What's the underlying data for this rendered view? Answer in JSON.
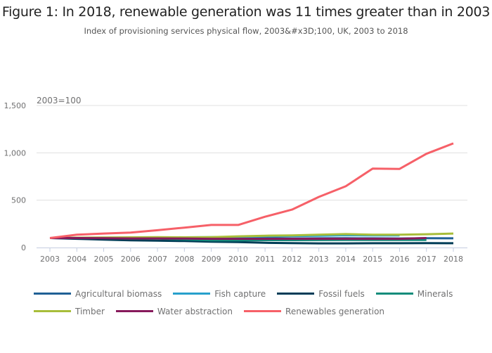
{
  "chart_data": {
    "type": "line",
    "title": "Figure 1: In 2018, renewable generation was 11 times greater than in 2003",
    "subtitle": "Index of provisioning services physical flow, 2003&#x3D;100, UK, 2003 to 2018",
    "unit_label": "2003=100",
    "xlabel": "",
    "ylabel": "",
    "ylim": [
      0,
      1500
    ],
    "yticks": [
      0,
      500,
      1000,
      1500
    ],
    "ytick_labels": [
      "0",
      "500",
      "1,000",
      "1,500"
    ],
    "grid": true,
    "legend_position": "bottom",
    "x": [
      "2003",
      "2004",
      "2005",
      "2006",
      "2007",
      "2008",
      "2009",
      "2010",
      "2011",
      "2012",
      "2013",
      "2014",
      "2015",
      "2016",
      "2017",
      "2018"
    ],
    "series": [
      {
        "name": "Agricultural biomass",
        "color": "#206095",
        "values": [
          100,
          98,
          97,
          96,
          97,
          96,
          97,
          96,
          97,
          96,
          97,
          98,
          97,
          96,
          98,
          97
        ]
      },
      {
        "name": "Fish capture",
        "color": "#27a0cc",
        "values": [
          100,
          104,
          102,
          103,
          106,
          108,
          110,
          112,
          118,
          120,
          125,
          130,
          128,
          128,
          null,
          null
        ]
      },
      {
        "name": "Fossil fuels",
        "color": "#003c57",
        "values": [
          100,
          92,
          84,
          76,
          72,
          68,
          62,
          58,
          50,
          46,
          44,
          44,
          45,
          45,
          46,
          45
        ]
      },
      {
        "name": "Minerals",
        "color": "#118c7b",
        "values": [
          100,
          100,
          99,
          95,
          94,
          86,
          76,
          76,
          78,
          78,
          79,
          80,
          80,
          80,
          80,
          null
        ]
      },
      {
        "name": "Timber",
        "color": "#a8bd3a",
        "values": [
          100,
          104,
          106,
          108,
          110,
          108,
          110,
          118,
          125,
          128,
          135,
          142,
          135,
          135,
          140,
          148
        ]
      },
      {
        "name": "Water abstraction",
        "color": "#871a5b",
        "values": [
          100,
          100,
          98,
          96,
          96,
          94,
          92,
          92,
          92,
          92,
          92,
          92,
          92,
          92,
          100,
          null
        ]
      },
      {
        "name": "Renewables generation",
        "color": "#f66068",
        "values": [
          100,
          135,
          148,
          158,
          183,
          210,
          238,
          238,
          325,
          400,
          535,
          647,
          833,
          830,
          990,
          1100
        ]
      }
    ]
  }
}
